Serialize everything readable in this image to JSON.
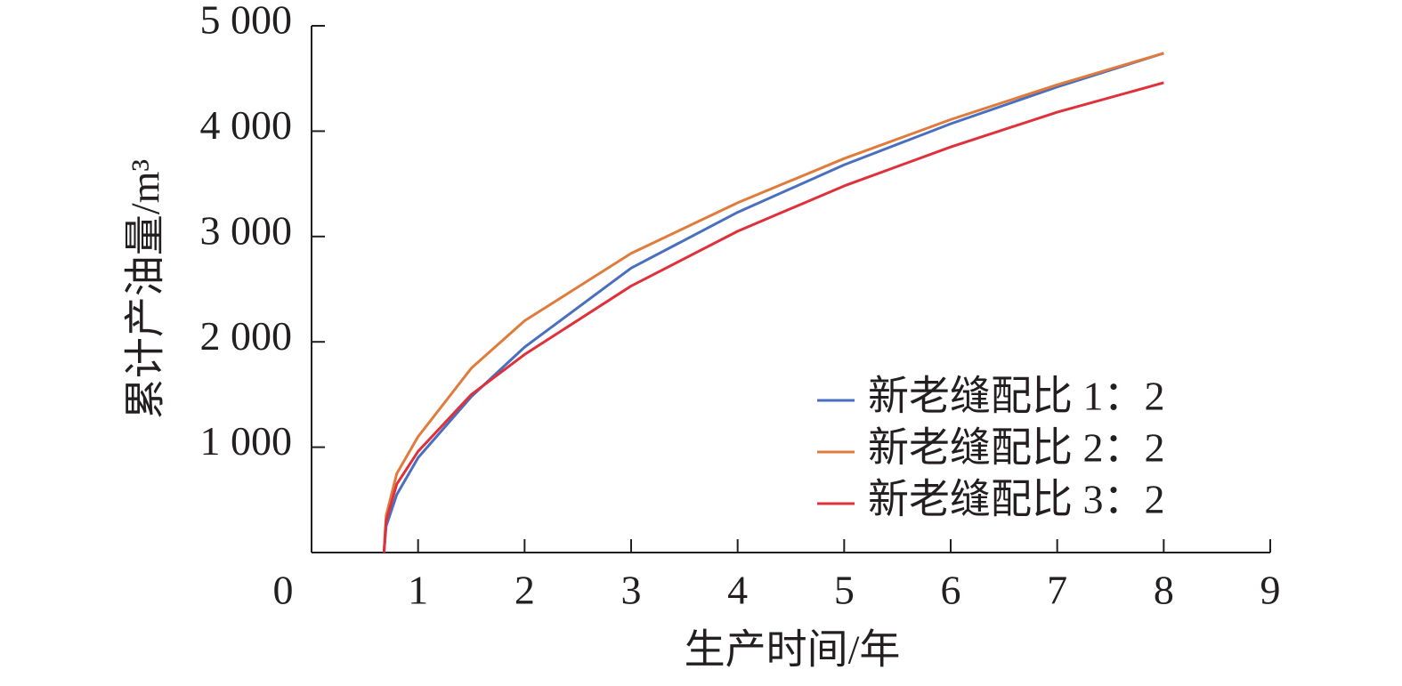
{
  "chart_data": {
    "type": "line",
    "x_label": "生产时间/年",
    "y_label": "累计产油量/m³",
    "x": [
      0.68,
      0.7,
      0.8,
      1,
      1.5,
      2,
      3,
      4,
      5,
      6,
      7,
      8
    ],
    "series": [
      {
        "name": "新老缝配比 1：2",
        "color": "#4a6fc0",
        "values": [
          0,
          250,
          550,
          900,
          1480,
          1950,
          2700,
          3230,
          3680,
          4070,
          4420,
          4740
        ]
      },
      {
        "name": "新老缝配比 2：2",
        "color": "#e07b3c",
        "values": [
          0,
          350,
          750,
          1100,
          1750,
          2200,
          2840,
          3320,
          3740,
          4110,
          4440,
          4740
        ]
      },
      {
        "name": "新老缝配比 3：2",
        "color": "#e0303a",
        "values": [
          0,
          300,
          650,
          960,
          1500,
          1880,
          2530,
          3050,
          3480,
          3850,
          4180,
          4460
        ]
      }
    ],
    "xlim": [
      0,
      9
    ],
    "xticks": [
      0,
      1,
      2,
      3,
      4,
      5,
      6,
      7,
      8,
      9
    ],
    "ylim": [
      0,
      5000
    ],
    "yticks": [
      {
        "value": 1000,
        "label": "1 000"
      },
      {
        "value": 2000,
        "label": "2 000"
      },
      {
        "value": 3000,
        "label": "3 000"
      },
      {
        "value": 4000,
        "label": "4 000"
      },
      {
        "value": 5000,
        "label": "5 000"
      }
    ],
    "legend": "lower right"
  }
}
